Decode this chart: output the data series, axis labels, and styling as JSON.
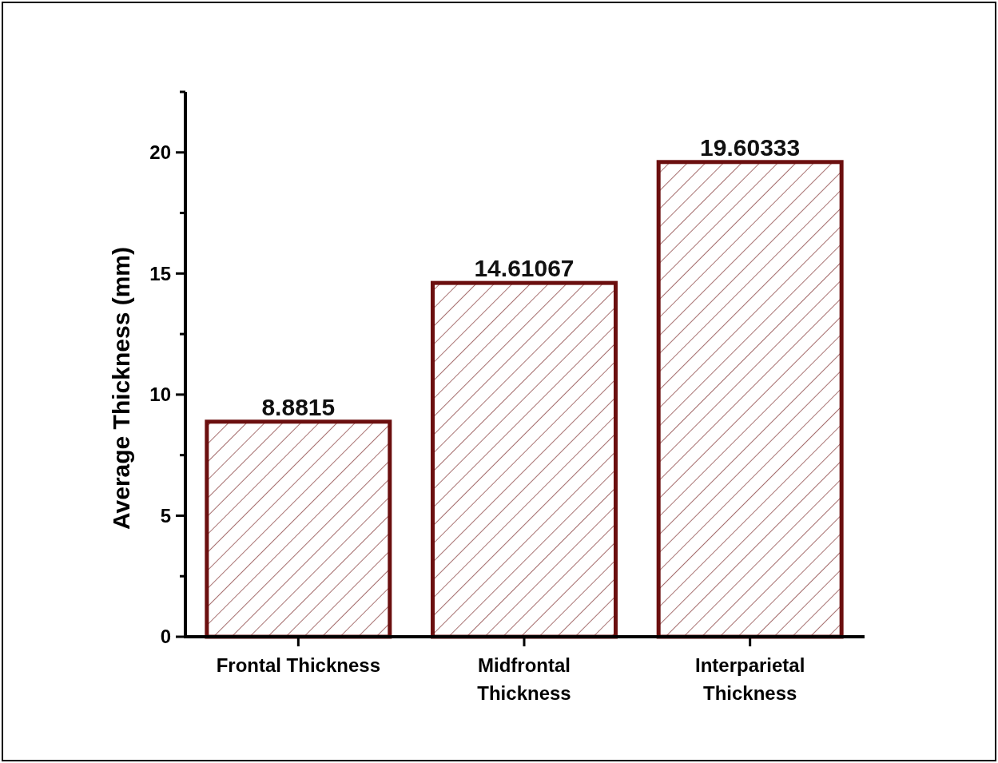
{
  "chart_data": {
    "type": "bar",
    "ylabel": "Average Thickness (mm)",
    "categories": [
      "Frontal Thickness",
      "Midfrontal Thickness",
      "Interparietal Thickness"
    ],
    "values": [
      8.8815,
      14.61067,
      19.60333
    ],
    "color": "#6b0f0f",
    "ylim": [
      0,
      22.5
    ],
    "yticks": [
      0,
      {
        "value": 2.5,
        "label": null
      },
      5,
      {
        "value": 7.5,
        "label": null
      },
      10,
      {
        "value": 12.5,
        "label": null
      },
      15,
      {
        "value": 17.5,
        "label": null
      },
      20,
      {
        "value": 22.5,
        "label": null
      }
    ],
    "data_labels": true
  }
}
